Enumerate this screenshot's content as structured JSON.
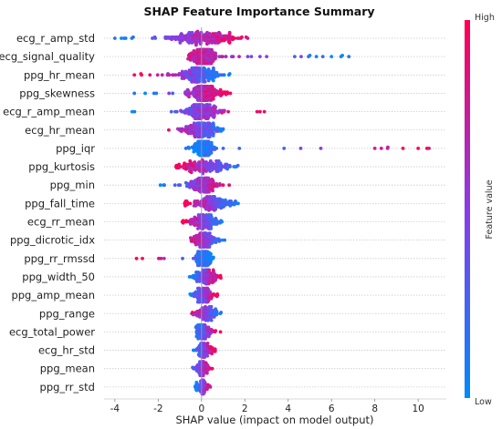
{
  "chart_data": {
    "type": "scatter",
    "subtype": "beeswarm",
    "title": "SHAP Feature Importance Summary",
    "xlabel": "SHAP value (impact on model output)",
    "ylabel": "",
    "xlim": [
      -4.5,
      11.3
    ],
    "xticks": [
      "-4",
      "-2",
      "0",
      "2",
      "4",
      "6",
      "8",
      "10"
    ],
    "colorbar": {
      "label": "Feature value",
      "high": "High",
      "low": "Low",
      "low_color": "#008afb",
      "mid_color": "#8a3ce6",
      "high_color": "#ff0052"
    },
    "grid": "horizontal",
    "features": [
      {
        "name": "ecg_r_amp_std",
        "min": -4.0,
        "max": 2.3,
        "core": [
          -1.8,
          1.9
        ],
        "low_side": "left",
        "outliers": [
          -4.0,
          -3.7,
          -3.5
        ]
      },
      {
        "name": "ecg_signal_quality",
        "min": -2.2,
        "max": 6.8,
        "core": [
          -0.5,
          0.7
        ],
        "low_side": "right",
        "outliers": [
          2.3,
          2.7,
          4.3,
          4.6,
          5.0,
          5.3,
          5.6,
          6.0,
          6.5,
          6.8
        ]
      },
      {
        "name": "ppg_hr_mean",
        "min": -3.1,
        "max": 1.4,
        "core": [
          -1.2,
          0.9
        ],
        "low_side": "right",
        "outliers": [
          -3.1,
          -2.8
        ]
      },
      {
        "name": "ppg_skewness",
        "min": -3.1,
        "max": 1.5,
        "core": [
          -0.8,
          1.0
        ],
        "low_side": "left",
        "outliers": [
          -3.1,
          -2.6
        ]
      },
      {
        "name": "ecg_r_amp_mean",
        "min": -3.2,
        "max": 2.9,
        "core": [
          -0.9,
          1.0
        ],
        "low_side": "left",
        "outliers": [
          -3.2,
          2.7,
          2.9
        ]
      },
      {
        "name": "ecg_hr_mean",
        "min": -1.9,
        "max": 1.3,
        "core": [
          -1.0,
          0.9
        ],
        "low_side": "right",
        "outliers": []
      },
      {
        "name": "ppg_iqr",
        "min": -1.0,
        "max": 10.5,
        "core": [
          -0.4,
          0.6
        ],
        "low_side": "left",
        "outliers": [
          8.0,
          8.3,
          8.6,
          9.3,
          10.0,
          10.5
        ]
      },
      {
        "name": "ppg_kurtosis",
        "min": -1.2,
        "max": 1.9,
        "core": [
          -1.1,
          1.5
        ],
        "low_side": "right",
        "outliers": []
      },
      {
        "name": "ppg_min",
        "min": -1.9,
        "max": 1.4,
        "core": [
          -0.6,
          0.9
        ],
        "low_side": "left",
        "outliers": [
          -1.9
        ]
      },
      {
        "name": "ppg_fall_time",
        "min": -0.8,
        "max": 1.7,
        "core": [
          -0.7,
          1.7
        ],
        "low_side": "right",
        "outliers": []
      },
      {
        "name": "ecg_rr_mean",
        "min": -0.9,
        "max": 1.0,
        "core": [
          -0.9,
          0.9
        ],
        "low_side": "right",
        "outliers": []
      },
      {
        "name": "ppg_dicrotic_idx",
        "min": -0.7,
        "max": 1.2,
        "core": [
          -0.5,
          0.8
        ],
        "low_side": "right",
        "outliers": []
      },
      {
        "name": "ppg_rr_rmssd",
        "min": -3.0,
        "max": 0.6,
        "core": [
          -0.3,
          0.5
        ],
        "low_side": "right",
        "outliers": [
          -3.0
        ]
      },
      {
        "name": "ppg_width_50",
        "min": -0.6,
        "max": 0.9,
        "core": [
          -0.5,
          0.9
        ],
        "low_side": "left",
        "outliers": []
      },
      {
        "name": "ppg_amp_mean",
        "min": -0.6,
        "max": 0.8,
        "core": [
          -0.5,
          0.8
        ],
        "low_side": "left",
        "outliers": []
      },
      {
        "name": "ppg_range",
        "min": -0.7,
        "max": 1.0,
        "core": [
          -0.4,
          0.9
        ],
        "low_side": "right",
        "outliers": []
      },
      {
        "name": "ecg_total_power",
        "min": -0.4,
        "max": 0.9,
        "core": [
          -0.4,
          0.6
        ],
        "low_side": "left",
        "outliers": []
      },
      {
        "name": "ecg_hr_std",
        "min": -0.5,
        "max": 0.7,
        "core": [
          -0.3,
          0.5
        ],
        "low_side": "left",
        "outliers": []
      },
      {
        "name": "ppg_mean",
        "min": -0.6,
        "max": 0.5,
        "core": [
          -0.3,
          0.4
        ],
        "low_side": "left",
        "outliers": []
      },
      {
        "name": "ppg_rr_std",
        "min": -0.3,
        "max": 0.5,
        "core": [
          -0.3,
          0.4
        ],
        "low_side": "left",
        "outliers": []
      }
    ]
  }
}
